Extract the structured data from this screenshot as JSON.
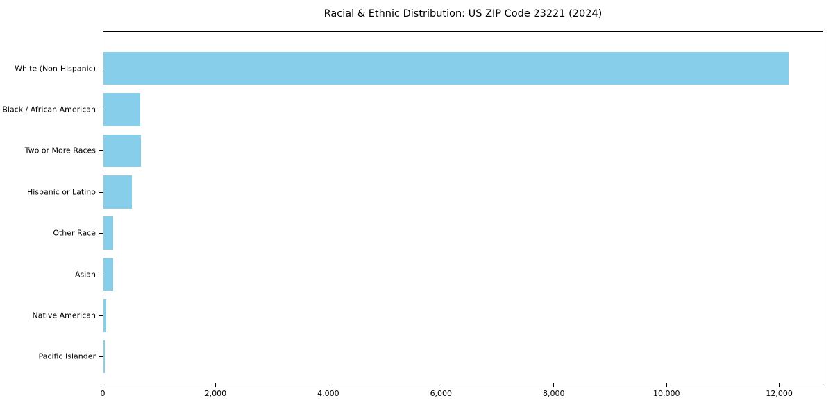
{
  "chart_data": {
    "type": "bar",
    "orientation": "horizontal",
    "title": "Racial & Ethnic Distribution: US ZIP Code 23221 (2024)",
    "categories": [
      "White (Non-Hispanic)",
      "Black / African American",
      "Two or More Races",
      "Hispanic or Latino",
      "Other Race",
      "Asian",
      "Native American",
      "Pacific Islander"
    ],
    "values": [
      12170,
      655,
      665,
      500,
      170,
      172,
      45,
      30
    ],
    "xlabel": "",
    "ylabel": "",
    "xlim": [
      0,
      12780
    ],
    "x_ticks": [
      {
        "value": 0,
        "label": "0"
      },
      {
        "value": 2000,
        "label": "2,000"
      },
      {
        "value": 4000,
        "label": "4,000"
      },
      {
        "value": 6000,
        "label": "6,000"
      },
      {
        "value": 8000,
        "label": "8,000"
      },
      {
        "value": 10000,
        "label": "10,000"
      },
      {
        "value": 12000,
        "label": "12,000"
      }
    ],
    "bar_color": "#87CEEB",
    "grid": false,
    "legend": null
  }
}
